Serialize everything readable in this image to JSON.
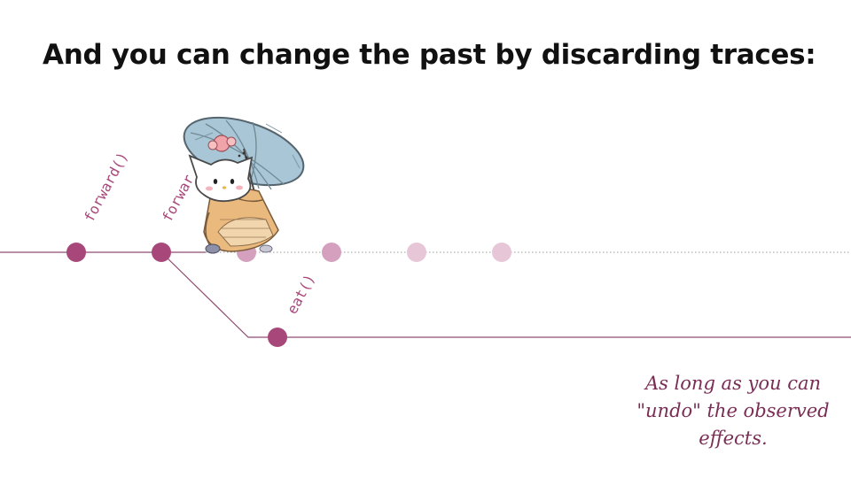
{
  "slide": {
    "title": "And you can change the past by discarding traces:"
  },
  "timeline": {
    "labels": [
      "forward()",
      "forwar",
      "eat()"
    ],
    "colors": {
      "main": "#a8477a",
      "faded_1": "#d4a0bd",
      "faded_2": "#e6c6d7",
      "line": "#8e4c70",
      "dotted": "#9a9a9a"
    }
  },
  "illustration": {
    "icon": "cat-with-umbrella-icon"
  },
  "caption": {
    "lines": [
      "As long as you can",
      "\"undo\" the observed",
      "effects."
    ]
  }
}
